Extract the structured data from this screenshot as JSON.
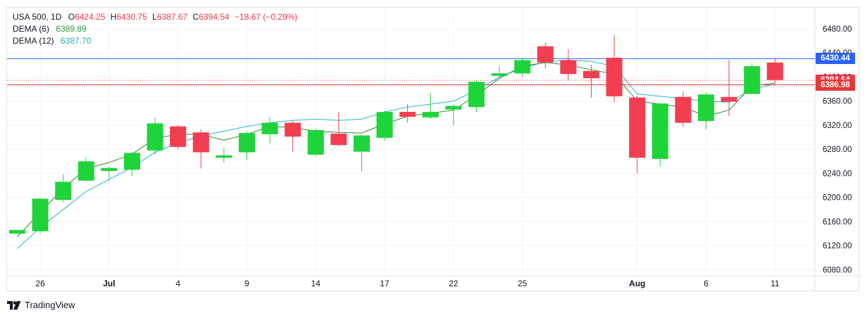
{
  "legend": {
    "symbol": "USA 500, 1D",
    "o_label": "O",
    "o": "6424.25",
    "h_label": "H",
    "h": "6430.75",
    "l_label": "L",
    "l": "6387.67",
    "c_label": "C",
    "c": "6394.54",
    "change": "−18.67 (−0.29%)",
    "dema6_label": "DEMA (6)",
    "dema6_value": "6389.89",
    "dema12_label": "DEMA (12)",
    "dema12_value": "6387.70"
  },
  "brand": "TradingView",
  "price_tags": {
    "blue": "6430.44",
    "close": "6394.54",
    "red": "6386.98"
  },
  "colors": {
    "up": "#1fd43a",
    "down": "#f23e50",
    "dema6": "#2e8b2e",
    "dema12": "#25b5d0",
    "hline_blue": "#2962ff",
    "hline_red": "#e53935",
    "close_tag": "#f23645",
    "blue_tag": "#2962ff",
    "red_tag": "#e53935"
  },
  "chart_data": {
    "type": "candlestick",
    "y_range": [
      6070,
      6515
    ],
    "y_ticks": [
      "6480.00",
      "6440.00",
      "6400.00",
      "6360.00",
      "6320.00",
      "6280.00",
      "6240.00",
      "6200.00",
      "6160.00",
      "6120.00",
      "6080.00"
    ],
    "x_ticks": [
      {
        "label": "26",
        "index": 1,
        "bold": false
      },
      {
        "label": "Jul",
        "index": 4,
        "bold": true
      },
      {
        "label": "4",
        "index": 7,
        "bold": false
      },
      {
        "label": "9",
        "index": 10,
        "bold": false
      },
      {
        "label": "14",
        "index": 13,
        "bold": false
      },
      {
        "label": "17",
        "index": 16,
        "bold": false
      },
      {
        "label": "22",
        "index": 19,
        "bold": false
      },
      {
        "label": "25",
        "index": 22,
        "bold": false
      },
      {
        "label": "Aug",
        "index": 27,
        "bold": true
      },
      {
        "label": "6",
        "index": 30,
        "bold": false
      },
      {
        "label": "11",
        "index": 33,
        "bold": false
      }
    ],
    "candles": [
      {
        "o": 6140,
        "h": 6146,
        "l": 6140,
        "c": 6146
      },
      {
        "o": 6144,
        "h": 6200,
        "l": 6140,
        "c": 6198
      },
      {
        "o": 6196,
        "h": 6238,
        "l": 6192,
        "c": 6226
      },
      {
        "o": 6228,
        "h": 6266,
        "l": 6226,
        "c": 6260
      },
      {
        "o": 6244,
        "h": 6252,
        "l": 6228,
        "c": 6249
      },
      {
        "o": 6246,
        "h": 6276,
        "l": 6236,
        "c": 6274
      },
      {
        "o": 6278,
        "h": 6332,
        "l": 6272,
        "c": 6323
      },
      {
        "o": 6318,
        "h": 6320,
        "l": 6280,
        "c": 6284
      },
      {
        "o": 6308,
        "h": 6313,
        "l": 6248,
        "c": 6275
      },
      {
        "o": 6266,
        "h": 6282,
        "l": 6258,
        "c": 6270
      },
      {
        "o": 6275,
        "h": 6310,
        "l": 6262,
        "c": 6307
      },
      {
        "o": 6305,
        "h": 6334,
        "l": 6290,
        "c": 6324
      },
      {
        "o": 6324,
        "h": 6327,
        "l": 6276,
        "c": 6301
      },
      {
        "o": 6271,
        "h": 6314,
        "l": 6268,
        "c": 6312
      },
      {
        "o": 6306,
        "h": 6342,
        "l": 6285,
        "c": 6287
      },
      {
        "o": 6276,
        "h": 6304,
        "l": 6243,
        "c": 6303
      },
      {
        "o": 6299,
        "h": 6344,
        "l": 6294,
        "c": 6342
      },
      {
        "o": 6342,
        "h": 6355,
        "l": 6324,
        "c": 6334
      },
      {
        "o": 6333,
        "h": 6373,
        "l": 6330,
        "c": 6342
      },
      {
        "o": 6346,
        "h": 6354,
        "l": 6320,
        "c": 6352
      },
      {
        "o": 6350,
        "h": 6395,
        "l": 6342,
        "c": 6392
      },
      {
        "o": 6402,
        "h": 6418,
        "l": 6400,
        "c": 6406
      },
      {
        "o": 6406,
        "h": 6432,
        "l": 6400,
        "c": 6428
      },
      {
        "o": 6451,
        "h": 6457,
        "l": 6414,
        "c": 6424
      },
      {
        "o": 6428,
        "h": 6446,
        "l": 6394,
        "c": 6405
      },
      {
        "o": 6410,
        "h": 6420,
        "l": 6366,
        "c": 6398
      },
      {
        "o": 6432,
        "h": 6470,
        "l": 6358,
        "c": 6368
      },
      {
        "o": 6366,
        "h": 6369,
        "l": 6240,
        "c": 6266
      },
      {
        "o": 6264,
        "h": 6356,
        "l": 6252,
        "c": 6356
      },
      {
        "o": 6367,
        "h": 6376,
        "l": 6318,
        "c": 6324
      },
      {
        "o": 6327,
        "h": 6375,
        "l": 6313,
        "c": 6371
      },
      {
        "o": 6367,
        "h": 6428,
        "l": 6335,
        "c": 6359
      },
      {
        "o": 6372,
        "h": 6423,
        "l": 6371,
        "c": 6418
      },
      {
        "o": 6424,
        "h": 6431,
        "l": 6388,
        "c": 6395
      }
    ],
    "dema6": [
      6135,
      6175,
      6215,
      6248,
      6258,
      6272,
      6298,
      6305,
      6305,
      6295,
      6305,
      6318,
      6316,
      6310,
      6308,
      6307,
      6322,
      6335,
      6340,
      6345,
      6370,
      6398,
      6418,
      6424,
      6420,
      6412,
      6405,
      6360,
      6355,
      6350,
      6335,
      6345,
      6385,
      6390
    ],
    "dema12": [
      6115,
      6150,
      6180,
      6210,
      6230,
      6250,
      6275,
      6290,
      6303,
      6310,
      6318,
      6324,
      6328,
      6330,
      6328,
      6330,
      6342,
      6350,
      6355,
      6360,
      6378,
      6400,
      6415,
      6425,
      6428,
      6426,
      6418,
      6372,
      6368,
      6364,
      6360,
      6358,
      6380,
      6388
    ],
    "hlines": [
      {
        "name": "blue-line",
        "value": 6430.44,
        "color": "#2962ff"
      },
      {
        "name": "red-line",
        "value": 6386.98,
        "color": "#e53935"
      },
      {
        "name": "close-line",
        "value": 6394.54,
        "color": "#f23645",
        "dotted": true
      }
    ]
  }
}
